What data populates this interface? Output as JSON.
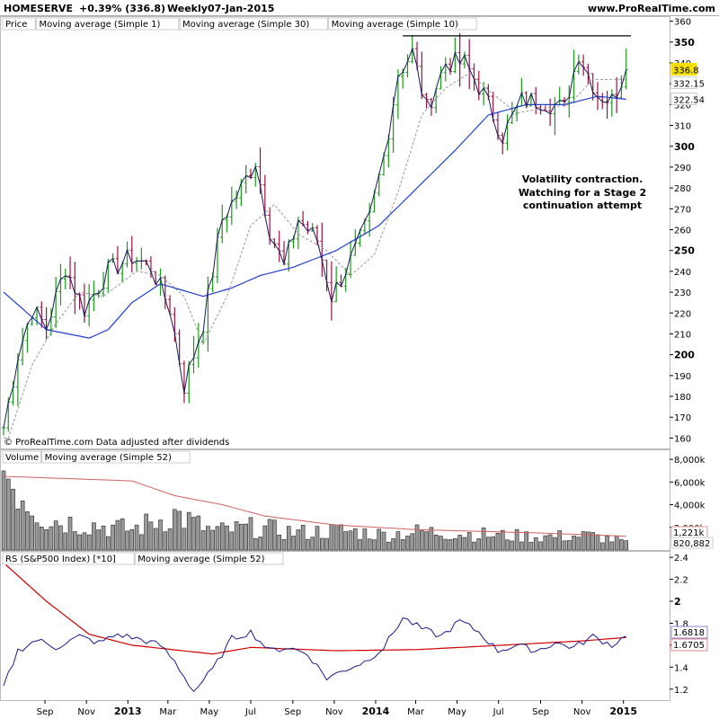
{
  "header": {
    "symbol": "HOMESERVE",
    "change": "+0.39% (336.8)",
    "interval": "Weekly",
    "date": "07-Jan-2015",
    "site": "www.ProRealTime.com"
  },
  "price_panel": {
    "legend": [
      {
        "label": "Price",
        "color": "#000000"
      },
      {
        "label": "Moving average (Simple 1)",
        "color": "#1a237e"
      },
      {
        "label": "Moving average (Simple 30)",
        "color": "#2040d0"
      },
      {
        "label": "Moving average (Simple 10)",
        "color": "#999999"
      }
    ],
    "footer": "© ProRealTime.com  Data adjusted after dividends",
    "annotation": [
      "Volatility contraction.",
      "Watching for a Stage 2",
      "continuation attempt"
    ],
    "y_ticks": [
      160,
      170,
      180,
      190,
      200,
      210,
      220,
      230,
      240,
      250,
      260,
      270,
      280,
      290,
      300,
      310,
      320,
      330,
      340,
      350,
      360
    ],
    "y_bold": [
      200,
      250,
      300,
      350
    ],
    "last_labels": [
      {
        "text": "336.8",
        "value": 336.8,
        "bg": "#f5e000",
        "fg": "#000000"
      },
      {
        "text": "332.15",
        "value": 332.15,
        "bg": "#ffffff",
        "fg": "#999999"
      },
      {
        "text": "322.54",
        "value": 322.54,
        "bg": "#ffffff",
        "fg": "#2040d0"
      }
    ],
    "resistance": 353
  },
  "volume_panel": {
    "legend": [
      {
        "label": "Volume",
        "color": "#999999"
      },
      {
        "label": "Moving average (Simple 52)",
        "color": "#d06060"
      }
    ],
    "y_ticks": [
      "2,000k",
      "4,000k",
      "6,000k",
      "8,000k"
    ],
    "last_labels": [
      "1,221k",
      "820,882"
    ]
  },
  "rs_panel": {
    "legend": [
      {
        "label": "RS (S&P500 Index) [*10]",
        "color": "#1a237e"
      },
      {
        "label": "Moving average (Simple 52)",
        "color": "#d00000"
      }
    ],
    "y_ticks": [
      "1.2",
      "1.4",
      "1.6",
      "1.8",
      "2",
      "2.2",
      "2.4"
    ],
    "last_labels": [
      "1.6818",
      "1.6705"
    ]
  },
  "x_axis": [
    {
      "label": "Sep",
      "bold": false
    },
    {
      "label": "Nov",
      "bold": false
    },
    {
      "label": "2013",
      "bold": true
    },
    {
      "label": "Mar",
      "bold": false
    },
    {
      "label": "May",
      "bold": false
    },
    {
      "label": "Jul",
      "bold": false
    },
    {
      "label": "Sep",
      "bold": false
    },
    {
      "label": "Nov",
      "bold": false
    },
    {
      "label": "2014",
      "bold": true
    },
    {
      "label": "Mar",
      "bold": false
    },
    {
      "label": "May",
      "bold": false
    },
    {
      "label": "Jul",
      "bold": false
    },
    {
      "label": "Sep",
      "bold": false
    },
    {
      "label": "Nov",
      "bold": false
    },
    {
      "label": "2015",
      "bold": true
    }
  ],
  "chart_data": {
    "type": "line",
    "price_anchors": [
      {
        "date": "2012-07-02",
        "close": 165
      },
      {
        "date": "2012-07-23",
        "close": 200
      },
      {
        "date": "2012-08-13",
        "close": 222
      },
      {
        "date": "2012-09-03",
        "close": 213
      },
      {
        "date": "2012-10-01",
        "close": 242
      },
      {
        "date": "2012-10-29",
        "close": 222
      },
      {
        "date": "2012-12-03",
        "close": 240
      },
      {
        "date": "2013-01-07",
        "close": 247
      },
      {
        "date": "2013-02-04",
        "close": 242
      },
      {
        "date": "2013-03-04",
        "close": 222
      },
      {
        "date": "2013-03-25",
        "close": 185
      },
      {
        "date": "2013-04-22",
        "close": 215
      },
      {
        "date": "2013-05-20",
        "close": 265
      },
      {
        "date": "2013-06-17",
        "close": 280
      },
      {
        "date": "2013-07-08",
        "close": 293
      },
      {
        "date": "2013-07-29",
        "close": 260
      },
      {
        "date": "2013-08-19",
        "close": 242
      },
      {
        "date": "2013-09-09",
        "close": 265
      },
      {
        "date": "2013-10-07",
        "close": 255
      },
      {
        "date": "2013-10-28",
        "close": 228
      },
      {
        "date": "2013-11-25",
        "close": 245
      },
      {
        "date": "2013-12-23",
        "close": 265
      },
      {
        "date": "2014-01-13",
        "close": 295
      },
      {
        "date": "2014-02-03",
        "close": 335
      },
      {
        "date": "2014-02-24",
        "close": 345
      },
      {
        "date": "2014-03-17",
        "close": 318
      },
      {
        "date": "2014-04-14",
        "close": 340
      },
      {
        "date": "2014-05-12",
        "close": 340
      },
      {
        "date": "2014-06-09",
        "close": 325
      },
      {
        "date": "2014-07-07",
        "close": 305
      },
      {
        "date": "2014-08-04",
        "close": 322
      },
      {
        "date": "2014-09-01",
        "close": 322
      },
      {
        "date": "2014-10-06",
        "close": 318
      },
      {
        "date": "2014-10-27",
        "close": 345
      },
      {
        "date": "2014-11-24",
        "close": 325
      },
      {
        "date": "2014-12-15",
        "close": 322
      },
      {
        "date": "2015-01-05",
        "close": 336.8
      }
    ],
    "ma30_anchors": [
      {
        "date": "2012-07-02",
        "value": 230
      },
      {
        "date": "2012-09-03",
        "value": 212
      },
      {
        "date": "2012-11-05",
        "value": 208
      },
      {
        "date": "2012-12-03",
        "value": 212
      },
      {
        "date": "2013-01-07",
        "value": 225
      },
      {
        "date": "2013-02-18",
        "value": 234
      },
      {
        "date": "2013-04-22",
        "value": 228
      },
      {
        "date": "2013-06-03",
        "value": 232
      },
      {
        "date": "2013-07-15",
        "value": 238
      },
      {
        "date": "2013-09-02",
        "value": 242
      },
      {
        "date": "2013-11-04",
        "value": 250
      },
      {
        "date": "2014-01-06",
        "value": 262
      },
      {
        "date": "2014-03-03",
        "value": 280
      },
      {
        "date": "2014-04-28",
        "value": 298
      },
      {
        "date": "2014-06-16",
        "value": 315
      },
      {
        "date": "2014-08-11",
        "value": 320
      },
      {
        "date": "2014-10-06",
        "value": 320
      },
      {
        "date": "2014-11-24",
        "value": 324
      },
      {
        "date": "2015-01-05",
        "value": 322.54
      }
    ],
    "ma10_anchors": [
      {
        "date": "2012-07-09",
        "value": 160
      },
      {
        "date": "2012-08-13",
        "value": 195
      },
      {
        "date": "2012-09-17",
        "value": 215
      },
      {
        "date": "2012-10-22",
        "value": 230
      },
      {
        "date": "2012-11-26",
        "value": 228
      },
      {
        "date": "2013-01-14",
        "value": 240
      },
      {
        "date": "2013-02-18",
        "value": 238
      },
      {
        "date": "2013-03-25",
        "value": 228
      },
      {
        "date": "2013-04-22",
        "value": 205
      },
      {
        "date": "2013-05-27",
        "value": 228
      },
      {
        "date": "2013-07-01",
        "value": 262
      },
      {
        "date": "2013-08-05",
        "value": 272
      },
      {
        "date": "2013-09-09",
        "value": 258
      },
      {
        "date": "2013-10-21",
        "value": 250
      },
      {
        "date": "2013-11-25",
        "value": 238
      },
      {
        "date": "2013-12-30",
        "value": 248
      },
      {
        "date": "2014-02-03",
        "value": 278
      },
      {
        "date": "2014-03-10",
        "value": 315
      },
      {
        "date": "2014-04-14",
        "value": 328
      },
      {
        "date": "2014-05-19",
        "value": 335
      },
      {
        "date": "2014-06-23",
        "value": 325
      },
      {
        "date": "2014-07-28",
        "value": 316
      },
      {
        "date": "2014-09-01",
        "value": 318
      },
      {
        "date": "2014-10-13",
        "value": 320
      },
      {
        "date": "2014-11-17",
        "value": 332
      },
      {
        "date": "2015-01-05",
        "value": 332.15
      }
    ],
    "volume_anchors_k": [
      {
        "date": "2012-07-02",
        "value": 8000
      },
      {
        "date": "2012-08-06",
        "value": 5000
      },
      {
        "date": "2012-09-03",
        "value": 3000
      },
      {
        "date": "2012-11-05",
        "value": 2500
      },
      {
        "date": "2013-01-07",
        "value": 2000
      },
      {
        "date": "2013-03-11",
        "value": 3500
      },
      {
        "date": "2013-05-06",
        "value": 1800
      },
      {
        "date": "2013-07-08",
        "value": 2200
      },
      {
        "date": "2013-09-09",
        "value": 1700
      },
      {
        "date": "2013-11-11",
        "value": 1900
      },
      {
        "date": "2014-01-13",
        "value": 1500
      },
      {
        "date": "2014-03-10",
        "value": 1800
      },
      {
        "date": "2014-05-12",
        "value": 1600
      },
      {
        "date": "2014-07-07",
        "value": 1400
      },
      {
        "date": "2014-09-08",
        "value": 1300
      },
      {
        "date": "2014-11-10",
        "value": 1400
      },
      {
        "date": "2015-01-05",
        "value": 820.882
      }
    ],
    "volume_ma_anchors_k": [
      {
        "date": "2012-07-02",
        "value": 6500
      },
      {
        "date": "2013-01-07",
        "value": 6100
      },
      {
        "date": "2013-03-11",
        "value": 4800
      },
      {
        "date": "2013-05-20",
        "value": 4000
      },
      {
        "date": "2013-07-22",
        "value": 3000
      },
      {
        "date": "2013-11-04",
        "value": 2200
      },
      {
        "date": "2014-03-03",
        "value": 1800
      },
      {
        "date": "2014-09-01",
        "value": 1500
      },
      {
        "date": "2015-01-05",
        "value": 1221
      }
    ],
    "rs_anchors": [
      {
        "date": "2012-07-02",
        "value": 1.22
      },
      {
        "date": "2012-07-23",
        "value": 1.55
      },
      {
        "date": "2012-08-20",
        "value": 1.65
      },
      {
        "date": "2012-09-17",
        "value": 1.58
      },
      {
        "date": "2012-10-22",
        "value": 1.68
      },
      {
        "date": "2012-11-19",
        "value": 1.62
      },
      {
        "date": "2012-12-17",
        "value": 1.7
      },
      {
        "date": "2013-01-21",
        "value": 1.65
      },
      {
        "date": "2013-02-18",
        "value": 1.6
      },
      {
        "date": "2013-03-11",
        "value": 1.45
      },
      {
        "date": "2013-04-08",
        "value": 1.18
      },
      {
        "date": "2013-05-06",
        "value": 1.38
      },
      {
        "date": "2013-06-03",
        "value": 1.66
      },
      {
        "date": "2013-07-01",
        "value": 1.72
      },
      {
        "date": "2013-07-29",
        "value": 1.55
      },
      {
        "date": "2013-08-26",
        "value": 1.58
      },
      {
        "date": "2013-09-23",
        "value": 1.52
      },
      {
        "date": "2013-10-21",
        "value": 1.3
      },
      {
        "date": "2013-11-18",
        "value": 1.38
      },
      {
        "date": "2013-12-16",
        "value": 1.45
      },
      {
        "date": "2014-01-13",
        "value": 1.58
      },
      {
        "date": "2014-02-10",
        "value": 1.85
      },
      {
        "date": "2014-03-10",
        "value": 1.75
      },
      {
        "date": "2014-04-07",
        "value": 1.68
      },
      {
        "date": "2014-05-05",
        "value": 1.82
      },
      {
        "date": "2014-06-02",
        "value": 1.72
      },
      {
        "date": "2014-06-30",
        "value": 1.55
      },
      {
        "date": "2014-07-28",
        "value": 1.6
      },
      {
        "date": "2014-08-25",
        "value": 1.55
      },
      {
        "date": "2014-09-22",
        "value": 1.62
      },
      {
        "date": "2014-10-20",
        "value": 1.58
      },
      {
        "date": "2014-11-17",
        "value": 1.68
      },
      {
        "date": "2014-12-15",
        "value": 1.6
      },
      {
        "date": "2015-01-05",
        "value": 1.6818
      }
    ],
    "rs_ma_anchors": [
      {
        "date": "2012-07-02",
        "value": 2.35
      },
      {
        "date": "2012-09-03",
        "value": 2.0
      },
      {
        "date": "2012-11-05",
        "value": 1.7
      },
      {
        "date": "2013-01-07",
        "value": 1.6
      },
      {
        "date": "2013-05-06",
        "value": 1.52
      },
      {
        "date": "2013-07-01",
        "value": 1.58
      },
      {
        "date": "2013-11-04",
        "value": 1.55
      },
      {
        "date": "2014-03-03",
        "value": 1.56
      },
      {
        "date": "2014-07-07",
        "value": 1.6
      },
      {
        "date": "2014-11-03",
        "value": 1.64
      },
      {
        "date": "2015-01-05",
        "value": 1.6705
      }
    ],
    "x_tick_dates": [
      "2012-09-01",
      "2012-11-01",
      "2013-01-01",
      "2013-03-01",
      "2013-05-01",
      "2013-07-01",
      "2013-09-01",
      "2013-11-01",
      "2014-01-01",
      "2014-03-01",
      "2014-05-01",
      "2014-07-01",
      "2014-09-01",
      "2014-11-01",
      "2015-01-01"
    ],
    "x_range": [
      "2012-07-02",
      "2015-01-12"
    ],
    "price_ylim": [
      155,
      362
    ],
    "volume_ylim_k": [
      0,
      8800
    ],
    "rs_ylim": [
      1.1,
      2.45
    ],
    "grid": false
  }
}
